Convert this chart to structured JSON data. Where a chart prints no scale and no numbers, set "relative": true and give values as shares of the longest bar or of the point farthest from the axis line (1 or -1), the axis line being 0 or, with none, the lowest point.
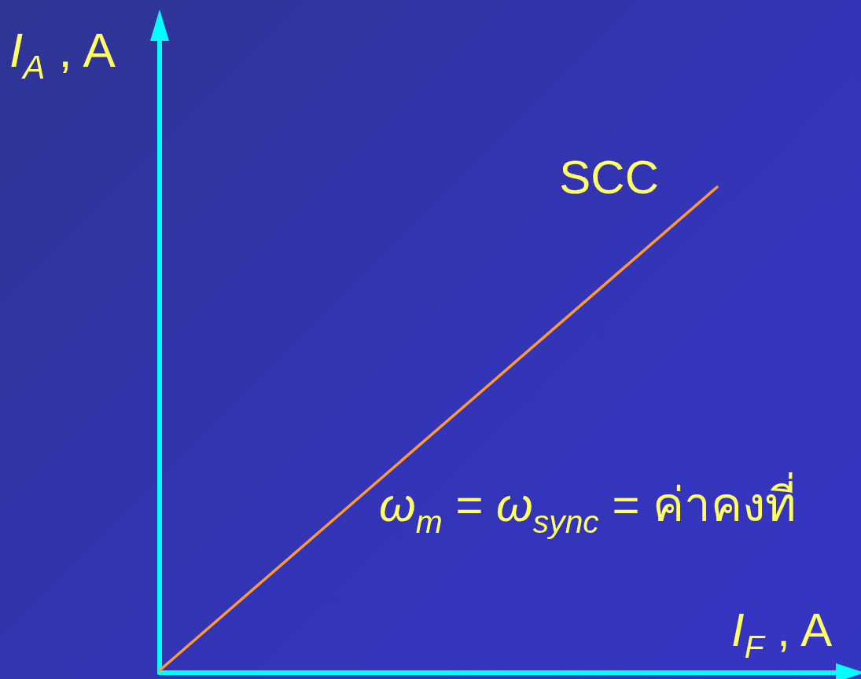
{
  "chart_data": {
    "type": "line",
    "xlabel": "I$_{F}$ , A",
    "ylabel": "I$_{A}$ , A",
    "categories": [
      null,
      null
    ],
    "series": [
      {
        "name": "SCC",
        "color": "#ff9933",
        "values": [
          0,
          1
        ]
      }
    ],
    "relative": true,
    "marker": "none",
    "line_style": "solid",
    "annotations": [
      "ω$_{m}$ = ω$_{sync}$ = ค่าคงที่"
    ]
  }
}
